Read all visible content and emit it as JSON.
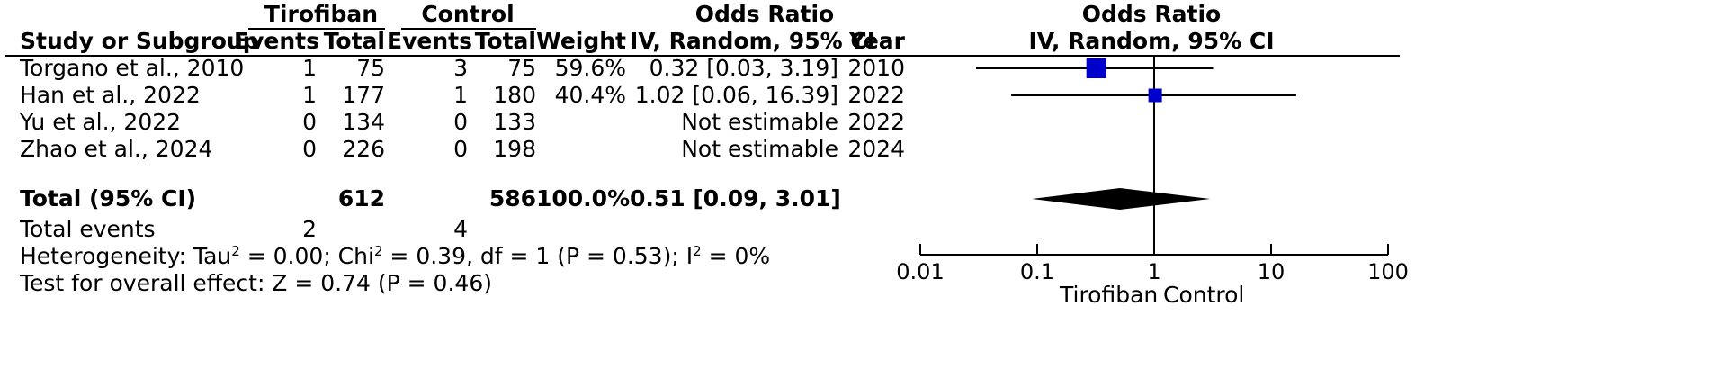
{
  "header": {
    "group1": "Tirofiban",
    "group2": "Control",
    "or_title": "Odds Ratio",
    "study_col": "Study or Subgroup",
    "events1": "Events",
    "total1": "Total",
    "events2": "Events",
    "total2": "Total",
    "weight": "Weight",
    "or_method": "IV, Random, 95% CI",
    "year": "Year",
    "plot_title": "Odds Ratio",
    "plot_method": "IV, Random, 95% CI"
  },
  "studies": [
    {
      "name": "Torgano et al., 2010",
      "e1": "1",
      "t1": "75",
      "e2": "3",
      "t2": "75",
      "weight": "59.6%",
      "ci": "0.32 [0.03, 3.19]",
      "year": "2010"
    },
    {
      "name": "Han et al., 2022",
      "e1": "1",
      "t1": "177",
      "e2": "1",
      "t2": "180",
      "weight": "40.4%",
      "ci": "1.02 [0.06, 16.39]",
      "year": "2022"
    },
    {
      "name": "Yu et al., 2022",
      "e1": "0",
      "t1": "134",
      "e2": "0",
      "t2": "133",
      "weight": "",
      "ci": "Not estimable",
      "year": "2022"
    },
    {
      "name": "Zhao et al., 2024",
      "e1": "0",
      "t1": "226",
      "e2": "0",
      "t2": "198",
      "weight": "",
      "ci": "Not estimable",
      "year": "2024"
    }
  ],
  "total": {
    "label": "Total (95% CI)",
    "t1": "612",
    "t2": "586",
    "weight": "100.0%",
    "ci": "0.51 [0.09, 3.01]"
  },
  "events": {
    "label": "Total events",
    "e1": "2",
    "e2": "4"
  },
  "heterogeneity": {
    "prefix": "Heterogeneity: Tau",
    "p2": " = 0.00; Chi",
    "p3": " = 0.39, df = 1 (P = 0.53); I",
    "p4": " = 0%",
    "sup": "2"
  },
  "overall_effect": "Test for overall effect: Z = 0.74 (P = 0.46)",
  "axis": {
    "favours_left": "Tirofiban",
    "favours_right": "Control"
  },
  "chart_data": {
    "type": "forest",
    "scale": "log",
    "xlim": [
      0.01,
      100
    ],
    "ticks": [
      0.01,
      0.1,
      1,
      10,
      100
    ],
    "tick_labels": [
      "0.01",
      "0.1",
      "1",
      "10",
      "100"
    ],
    "points": [
      {
        "study": "Torgano et al., 2010",
        "or": 0.32,
        "lo": 0.03,
        "hi": 3.19,
        "weight": 59.6
      },
      {
        "study": "Han et al., 2022",
        "or": 1.02,
        "lo": 0.06,
        "hi": 16.39,
        "weight": 40.4
      }
    ],
    "pooled": {
      "or": 0.51,
      "lo": 0.09,
      "hi": 3.01
    },
    "marker_color": "#0000cc"
  }
}
